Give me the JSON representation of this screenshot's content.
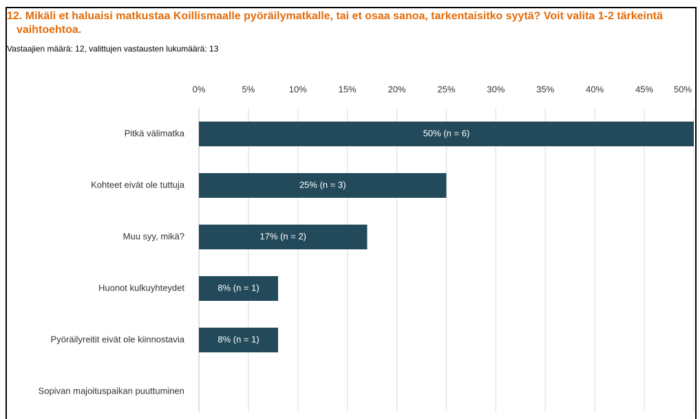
{
  "chart_data": {
    "type": "hbar",
    "title": "12. Mikäli et haluaisi matkustaa Koillismaalle pyöräilymatkalle, tai et osaa sanoa, tarkentaisitko syytä? Voit valita 1-2 tärkeintä vaihtoehtoa.",
    "subtitle": "Vastaajien määrä: 12, valittujen vastausten lukumäärä: 13",
    "categories": [
      "Pitkä välimatka",
      "Kohteet eivät ole tuttuja",
      "Muu syy, mikä?",
      "Huonot kulkuyhteydet",
      "Pyöräilyreitit eivät ole kiinnostavia",
      "Sopivan majoituspaikan puuttuminen"
    ],
    "values": [
      50,
      25,
      17,
      8,
      8,
      0
    ],
    "value_labels": [
      "50% (n = 6)",
      "25% (n = 3)",
      "17% (n = 2)",
      "8% (n = 1)",
      "8% (n = 1)",
      null
    ],
    "color": "#224a5a",
    "xlim": [
      0,
      50
    ],
    "xticks": [
      {
        "value": 0,
        "label": "0%"
      },
      {
        "value": 5,
        "label": "5%"
      },
      {
        "value": 10,
        "label": "10%"
      },
      {
        "value": 15,
        "label": "15%"
      },
      {
        "value": 20,
        "label": "20%"
      },
      {
        "value": 25,
        "label": "25%"
      },
      {
        "value": 30,
        "label": "30%"
      },
      {
        "value": 35,
        "label": "35%"
      },
      {
        "value": 40,
        "label": "40%"
      },
      {
        "value": 45,
        "label": "45%"
      },
      {
        "value": 50,
        "label": "50%"
      }
    ],
    "grid": true
  }
}
